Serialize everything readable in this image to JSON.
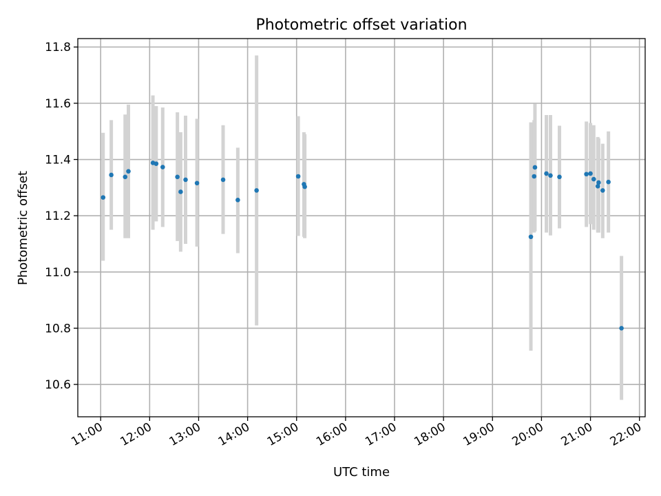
{
  "chart_data": {
    "type": "scatter",
    "title": "Photometric offset variation",
    "xlabel": "UTC time",
    "ylabel": "Photometric offset",
    "x_unit": "hours UTC",
    "xlim": [
      "10:32",
      "22:07"
    ],
    "ylim": [
      10.485,
      11.83
    ],
    "grid": true,
    "legend": "none",
    "x_ticks": [
      "11:00",
      "12:00",
      "13:00",
      "14:00",
      "15:00",
      "16:00",
      "17:00",
      "18:00",
      "19:00",
      "20:00",
      "21:00",
      "22:00"
    ],
    "y_ticks": [
      "10.6",
      "10.8",
      "11.0",
      "11.2",
      "11.4",
      "11.6",
      "11.8"
    ],
    "y_tick_values": [
      10.6,
      10.8,
      11.0,
      11.2,
      11.4,
      11.6,
      11.8
    ],
    "colors": {
      "point": "#1f77b4",
      "errorbar": "#d3d3d3",
      "grid": "#b0b0b0"
    },
    "points": [
      {
        "x": "11:03",
        "y": 11.265,
        "lo": 11.04,
        "hi": 11.495
      },
      {
        "x": "11:13",
        "y": 11.345,
        "lo": 11.15,
        "hi": 11.54
      },
      {
        "x": "11:30",
        "y": 11.338,
        "lo": 11.12,
        "hi": 11.56
      },
      {
        "x": "11:34",
        "y": 11.358,
        "lo": 11.12,
        "hi": 11.595
      },
      {
        "x": "12:04",
        "y": 11.388,
        "lo": 11.15,
        "hi": 11.628
      },
      {
        "x": "12:08",
        "y": 11.385,
        "lo": 11.18,
        "hi": 11.59
      },
      {
        "x": "12:16",
        "y": 11.373,
        "lo": 11.16,
        "hi": 11.585
      },
      {
        "x": "12:34",
        "y": 11.338,
        "lo": 11.11,
        "hi": 11.568
      },
      {
        "x": "12:38",
        "y": 11.285,
        "lo": 11.072,
        "hi": 11.497
      },
      {
        "x": "12:44",
        "y": 11.328,
        "lo": 11.1,
        "hi": 11.556
      },
      {
        "x": "12:58",
        "y": 11.316,
        "lo": 11.09,
        "hi": 11.545
      },
      {
        "x": "13:30",
        "y": 11.328,
        "lo": 11.135,
        "hi": 11.522
      },
      {
        "x": "13:48",
        "y": 11.256,
        "lo": 11.067,
        "hi": 11.442
      },
      {
        "x": "14:11",
        "y": 11.29,
        "lo": 10.81,
        "hi": 11.77
      },
      {
        "x": "15:02",
        "y": 11.34,
        "lo": 11.128,
        "hi": 11.554
      },
      {
        "x": "15:09",
        "y": 11.312,
        "lo": 11.125,
        "hi": 11.497
      },
      {
        "x": "15:10",
        "y": 11.303,
        "lo": 11.12,
        "hi": 11.49
      },
      {
        "x": "19:47",
        "y": 11.125,
        "lo": 10.72,
        "hi": 11.532
      },
      {
        "x": "19:51",
        "y": 11.34,
        "lo": 11.14,
        "hi": 11.54
      },
      {
        "x": "19:52",
        "y": 11.372,
        "lo": 11.145,
        "hi": 11.598
      },
      {
        "x": "20:06",
        "y": 11.35,
        "lo": 11.14,
        "hi": 11.558
      },
      {
        "x": "20:11",
        "y": 11.343,
        "lo": 11.13,
        "hi": 11.558
      },
      {
        "x": "20:22",
        "y": 11.338,
        "lo": 11.155,
        "hi": 11.52
      },
      {
        "x": "20:55",
        "y": 11.348,
        "lo": 11.16,
        "hi": 11.535
      },
      {
        "x": "21:00",
        "y": 11.35,
        "lo": 11.17,
        "hi": 11.53
      },
      {
        "x": "21:04",
        "y": 11.33,
        "lo": 11.15,
        "hi": 11.522
      },
      {
        "x": "21:09",
        "y": 11.305,
        "lo": 11.14,
        "hi": 11.48
      },
      {
        "x": "21:10",
        "y": 11.318,
        "lo": 11.14,
        "hi": 11.475
      },
      {
        "x": "21:15",
        "y": 11.29,
        "lo": 11.12,
        "hi": 11.456
      },
      {
        "x": "21:22",
        "y": 11.32,
        "lo": 11.14,
        "hi": 11.5
      },
      {
        "x": "21:38",
        "y": 10.8,
        "lo": 10.545,
        "hi": 11.057
      }
    ]
  }
}
